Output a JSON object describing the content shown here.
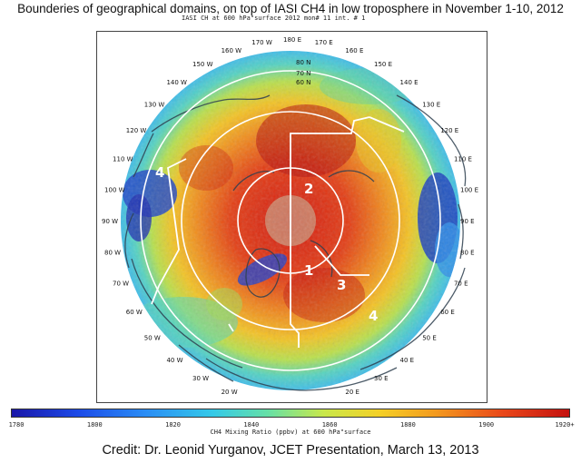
{
  "title": "Bounderies of geographical domains, on top of IASI CH4 in low troposphere in November 1-10, 2012",
  "subtitle": "IASI CH  at 600 hPa\"surface 2012 mon#  11 int. # 1",
  "credit": "Credit: Dr. Leonid Yurganov, JCET Presentation, March 13, 2013",
  "colorbar": {
    "label": "CH4 Mixing Ratio (ppbv) at 600 hPa\"surface",
    "ticks": [
      "1780",
      "1800",
      "1820",
      "1840",
      "1860",
      "1880",
      "1900",
      "1920+"
    ],
    "colors": [
      "#1a16a8",
      "#1c4be8",
      "#2a8df5",
      "#34c9e8",
      "#66e0a6",
      "#c9e84a",
      "#f4d027",
      "#f39a1e",
      "#e9481a",
      "#c4120f"
    ]
  },
  "map": {
    "domain_labels": [
      "1",
      "2",
      "3",
      "4",
      "4"
    ],
    "meridian_labels": [
      {
        "text": "180 E",
        "lon": 180
      },
      {
        "text": "170 E",
        "lon": 170
      },
      {
        "text": "170 W",
        "lon": -170
      },
      {
        "text": "160 W",
        "lon": -160
      },
      {
        "text": "150 W",
        "lon": -150
      },
      {
        "text": "140 W",
        "lon": -140
      },
      {
        "text": "130 W",
        "lon": -130
      },
      {
        "text": "120 W",
        "lon": -120
      },
      {
        "text": "110 W",
        "lon": -110
      },
      {
        "text": "100 W",
        "lon": -100
      },
      {
        "text": "90 W",
        "lon": -90
      },
      {
        "text": "80 W",
        "lon": -80
      },
      {
        "text": "70 W",
        "lon": -70
      },
      {
        "text": "60 W",
        "lon": -60
      },
      {
        "text": "50 W",
        "lon": -50
      },
      {
        "text": "40 W",
        "lon": -40
      },
      {
        "text": "30 W",
        "lon": -30
      },
      {
        "text": "20 W",
        "lon": -20
      },
      {
        "text": "20 E",
        "lon": 20
      },
      {
        "text": "30 E",
        "lon": 30
      },
      {
        "text": "40 E",
        "lon": 40
      },
      {
        "text": "50 E",
        "lon": 50
      },
      {
        "text": "60 E",
        "lon": 60
      },
      {
        "text": "70 E",
        "lon": 70
      },
      {
        "text": "80 E",
        "lon": 80
      },
      {
        "text": "90 E",
        "lon": 90
      },
      {
        "text": "100 E",
        "lon": 100
      },
      {
        "text": "110 E",
        "lon": 110
      },
      {
        "text": "120 E",
        "lon": 120
      },
      {
        "text": "130 E",
        "lon": 130
      },
      {
        "text": "140 E",
        "lon": 140
      },
      {
        "text": "150 E",
        "lon": 150
      },
      {
        "text": "160 E",
        "lon": 160
      }
    ],
    "latitude_labels": [
      "80 N",
      "70 N",
      "60 N"
    ]
  }
}
